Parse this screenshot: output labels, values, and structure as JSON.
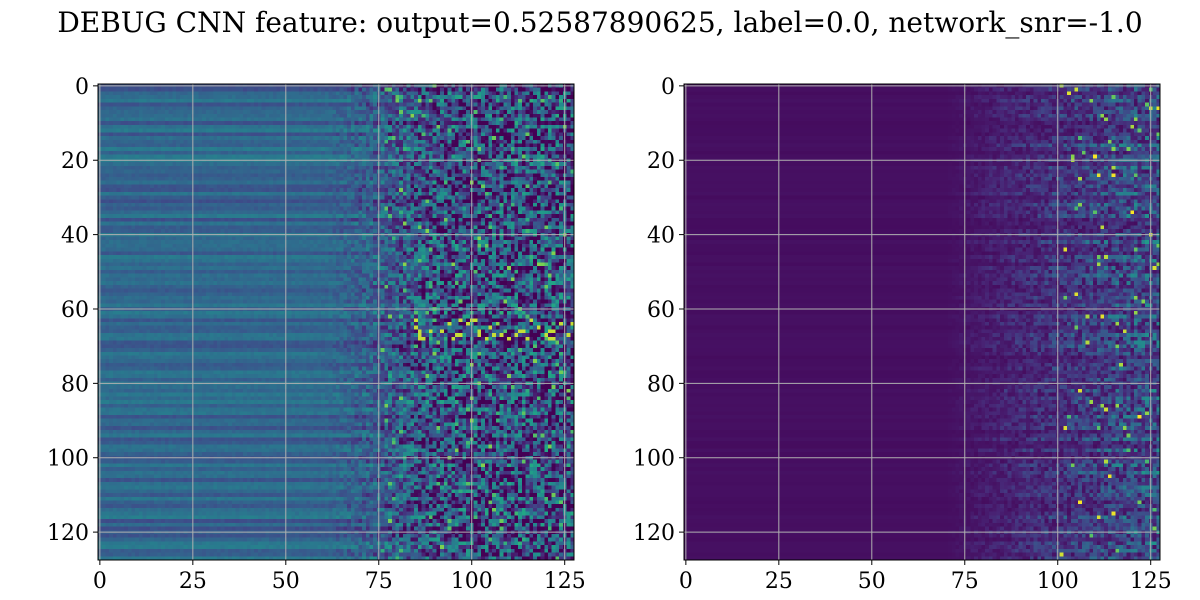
{
  "figure": {
    "title": "DEBUG CNN feature: output=0.52587890625, label=0.0, network_snr=-1.0"
  },
  "chart_data": [
    {
      "type": "heatmap",
      "colormap": "viridis",
      "grid": true,
      "rows": 128,
      "cols": 128,
      "xlim": [
        0,
        127
      ],
      "ylim": [
        127,
        0
      ],
      "xticks": [
        "0",
        "25",
        "50",
        "75",
        "100",
        "125"
      ],
      "yticks": [
        "0",
        "20",
        "40",
        "60",
        "80",
        "100",
        "120"
      ],
      "texture": "low-frequency columns (0-70) show smooth horizontal banding in mid-range teal/blue; columns 75-127 are high-variance noise with bright yellow-green outliers near rows 63-68"
    },
    {
      "type": "heatmap",
      "colormap": "viridis",
      "grid": true,
      "rows": 128,
      "cols": 128,
      "xlim": [
        0,
        127
      ],
      "ylim": [
        127,
        0
      ],
      "xticks": [
        "0",
        "25",
        "50",
        "75",
        "100",
        "125"
      ],
      "yticks": [
        "0",
        "20",
        "40",
        "60",
        "80",
        "100",
        "120"
      ],
      "texture": "mostly dark purple (low values) for columns 0-75; sparse brighter noise increasing to the right, highest values near columns 105-127"
    }
  ]
}
